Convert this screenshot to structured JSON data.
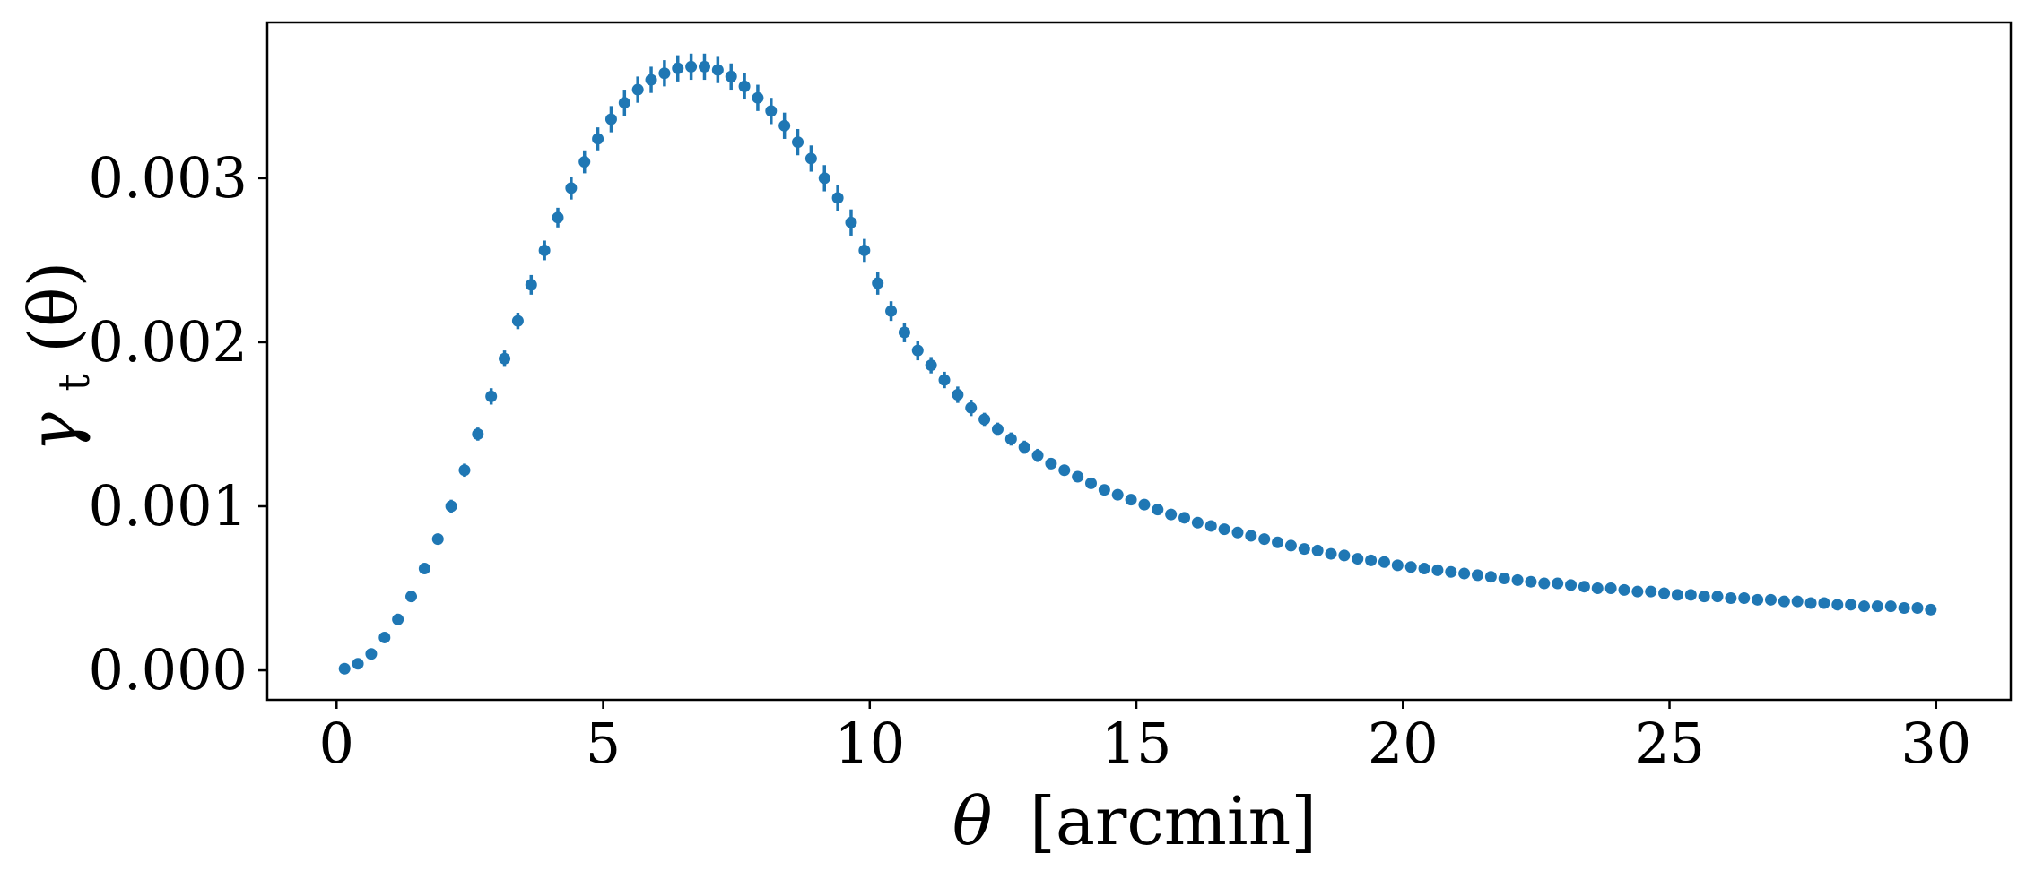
{
  "chart_data": {
    "type": "scatter",
    "title": "",
    "xlabel": {
      "symbol": "θ",
      "unit": "[arcmin]"
    },
    "ylabel": {
      "symbol": "γ",
      "subscript": "t",
      "arg": "(θ)"
    },
    "xlim": [
      -1.3,
      31.4
    ],
    "ylim": [
      -0.00018,
      0.00395
    ],
    "grid": false,
    "legend": "none",
    "color": "#1f77b4",
    "x_ticks": [
      0,
      5,
      10,
      15,
      20,
      25,
      30
    ],
    "x_tick_labels": [
      "0",
      "5",
      "10",
      "15",
      "20",
      "25",
      "30"
    ],
    "y_ticks": [
      0.0,
      0.001,
      0.002,
      0.003
    ],
    "y_tick_labels": [
      "0.000",
      "0.001",
      "0.002",
      "0.003"
    ],
    "series": [
      {
        "x": [
          0.15,
          0.4,
          0.65,
          0.9,
          1.15,
          1.4,
          1.65,
          1.9,
          2.15,
          2.4,
          2.65,
          2.9,
          3.15,
          3.4,
          3.65,
          3.9,
          4.15,
          4.4,
          4.65,
          4.9,
          5.15,
          5.4,
          5.65,
          5.9,
          6.15,
          6.4,
          6.65,
          6.9,
          7.15,
          7.4,
          7.65,
          7.9,
          8.15,
          8.4,
          8.65,
          8.9,
          9.15,
          9.4,
          9.65,
          9.9,
          10.15,
          10.4,
          10.65,
          10.9,
          11.15,
          11.4,
          11.65,
          11.9,
          12.15,
          12.4,
          12.65,
          12.9,
          13.15,
          13.4,
          13.65,
          13.9,
          14.15,
          14.4,
          14.65,
          14.9,
          15.15,
          15.4,
          15.65,
          15.9,
          16.15,
          16.4,
          16.65,
          16.9,
          17.15,
          17.4,
          17.65,
          17.9,
          18.15,
          18.4,
          18.65,
          18.9,
          19.15,
          19.4,
          19.65,
          19.9,
          20.15,
          20.4,
          20.65,
          20.9,
          21.15,
          21.4,
          21.65,
          21.9,
          22.15,
          22.4,
          22.65,
          22.9,
          23.15,
          23.4,
          23.65,
          23.9,
          24.15,
          24.4,
          24.65,
          24.9,
          25.15,
          25.4,
          25.65,
          25.9,
          26.15,
          26.4,
          26.65,
          26.9,
          27.15,
          27.4,
          27.65,
          27.9,
          28.15,
          28.4,
          28.65,
          28.9,
          29.15,
          29.4,
          29.65,
          29.9
        ],
        "y": [
          1e-05,
          4e-05,
          0.0001,
          0.0002,
          0.00031,
          0.00045,
          0.00062,
          0.0008,
          0.001,
          0.00122,
          0.00144,
          0.00167,
          0.0019,
          0.00213,
          0.00235,
          0.00256,
          0.00276,
          0.00294,
          0.0031,
          0.00324,
          0.00336,
          0.00346,
          0.00354,
          0.0036,
          0.00364,
          0.00367,
          0.00368,
          0.00368,
          0.00366,
          0.00362,
          0.00356,
          0.00349,
          0.00341,
          0.00332,
          0.00322,
          0.00312,
          0.003,
          0.00288,
          0.00273,
          0.00256,
          0.00236,
          0.00219,
          0.00206,
          0.00195,
          0.00186,
          0.00177,
          0.00168,
          0.0016,
          0.00153,
          0.00147,
          0.00141,
          0.00136,
          0.00131,
          0.00126,
          0.00122,
          0.00118,
          0.00114,
          0.0011,
          0.00107,
          0.00104,
          0.00101,
          0.00098,
          0.00095,
          0.00093,
          0.0009,
          0.00088,
          0.00086,
          0.00084,
          0.00082,
          0.0008,
          0.00078,
          0.00076,
          0.00074,
          0.00073,
          0.00071,
          0.0007,
          0.00068,
          0.00067,
          0.00066,
          0.00064,
          0.00063,
          0.00062,
          0.00061,
          0.0006,
          0.00059,
          0.00058,
          0.00057,
          0.00056,
          0.00055,
          0.00054,
          0.00053,
          0.00053,
          0.00052,
          0.00051,
          0.0005,
          0.0005,
          0.00049,
          0.00048,
          0.00048,
          0.00047,
          0.00046,
          0.00046,
          0.00045,
          0.00045,
          0.00044,
          0.00044,
          0.00043,
          0.00043,
          0.00042,
          0.00042,
          0.00041,
          0.00041,
          0.0004,
          0.0004,
          0.00039,
          0.00039,
          0.00039,
          0.00038,
          0.00038,
          0.00037
        ],
        "yerr": [
          1e-05,
          1e-05,
          2e-05,
          2e-05,
          2e-05,
          3e-05,
          3e-05,
          3e-05,
          4e-05,
          4e-05,
          4e-05,
          5e-05,
          5e-05,
          5e-05,
          6e-05,
          6e-05,
          6e-05,
          7e-05,
          7e-05,
          7e-05,
          8e-05,
          8e-05,
          8e-05,
          8e-05,
          8e-05,
          8e-05,
          8e-05,
          8e-05,
          8e-05,
          8e-05,
          8e-05,
          8e-05,
          8e-05,
          8e-05,
          8e-05,
          8e-05,
          8e-05,
          8e-05,
          8e-05,
          7e-05,
          7e-05,
          6e-05,
          6e-05,
          6e-05,
          5e-05,
          5e-05,
          5e-05,
          5e-05,
          4e-05,
          4e-05,
          4e-05,
          4e-05,
          4e-05,
          3e-05,
          3e-05,
          3e-05,
          3e-05,
          3e-05,
          3e-05,
          3e-05,
          2e-05,
          2e-05,
          2e-05,
          2e-05,
          2e-05,
          2e-05,
          2e-05,
          2e-05,
          2e-05,
          2e-05,
          2e-05,
          2e-05,
          2e-05,
          2e-05,
          2e-05,
          2e-05,
          2e-05,
          2e-05,
          2e-05,
          2e-05,
          2e-05,
          2e-05,
          2e-05,
          2e-05,
          2e-05,
          2e-05,
          2e-05,
          2e-05,
          2e-05,
          2e-05,
          2e-05,
          2e-05,
          2e-05,
          2e-05,
          2e-05,
          2e-05,
          2e-05,
          2e-05,
          2e-05,
          2e-05,
          2e-05,
          2e-05,
          2e-05,
          2e-05,
          2e-05,
          2e-05,
          2e-05,
          2e-05,
          2e-05,
          2e-05,
          2e-05,
          2e-05,
          2e-05,
          2e-05,
          2e-05,
          2e-05,
          2e-05,
          2e-05,
          2e-05,
          2e-05
        ]
      }
    ]
  }
}
